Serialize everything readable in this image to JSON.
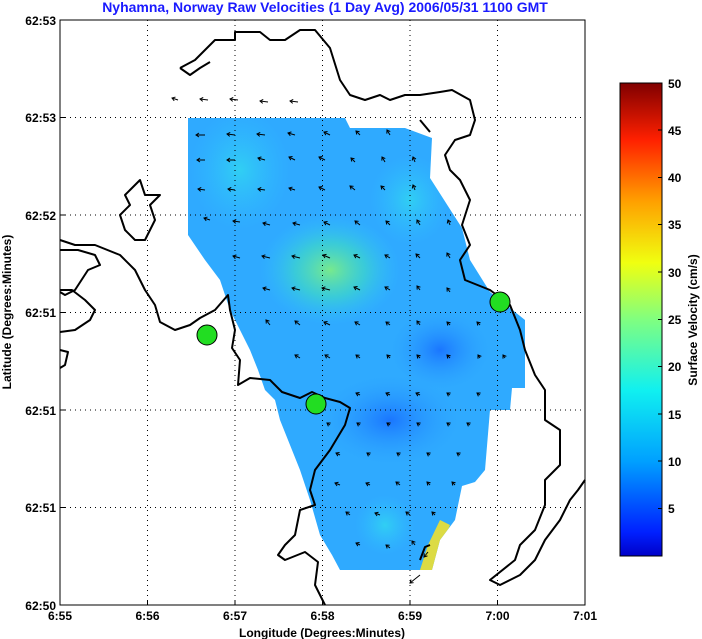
{
  "title": "Nyhamna, Norway Raw Velocities (1 Day Avg) 2006/05/31 1100 GMT",
  "xlabel": "Longitude (Degrees:Minutes)",
  "ylabel": "Latitude (Degrees:Minutes)",
  "x_ticks": [
    "6:55",
    "6:56",
    "6:57",
    "6:58",
    "6:59",
    "7:00",
    "7:01"
  ],
  "y_ticks": [
    "62:53",
    "62:53",
    "62:52",
    "62:51",
    "62:51",
    "62:51",
    "62:50"
  ],
  "colorbar": {
    "label": "Surface Velocity (cm/s)",
    "ticks": [
      "50",
      "45",
      "40",
      "35",
      "30",
      "25",
      "20",
      "15",
      "10",
      "5"
    ],
    "range": [
      0,
      50
    ],
    "colormap": "jet"
  },
  "grid": "dotted",
  "stations": [
    {
      "name": "",
      "lon": "6:56.67",
      "lat": "62:51.1"
    },
    {
      "name": "",
      "lon": "6:57.9",
      "lat": "62:50.9"
    },
    {
      "name": "",
      "lon": "7:00.0",
      "lat": "62:51.2"
    }
  ],
  "colors": {
    "title": "#1a1aff",
    "station_fill": "#22dd22",
    "coast": "#000000",
    "field_dominant": "#2fa8ff"
  }
}
